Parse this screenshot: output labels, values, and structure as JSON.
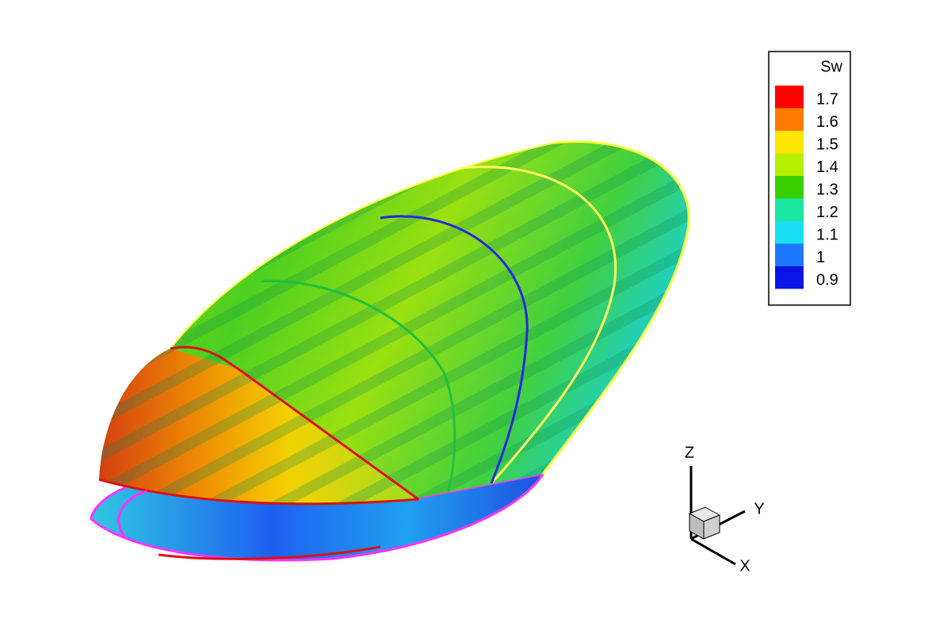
{
  "legend": {
    "title": "Sw",
    "levels": [
      {
        "value": 1.7,
        "color": "#ff0000"
      },
      {
        "value": 1.6,
        "color": "#ff7a00"
      },
      {
        "value": 1.5,
        "color": "#ffe600"
      },
      {
        "value": 1.4,
        "color": "#b4f000"
      },
      {
        "value": 1.3,
        "color": "#3ad000"
      },
      {
        "value": 1.2,
        "color": "#19e6a0"
      },
      {
        "value": 1.1,
        "color": "#19e0f0"
      },
      {
        "value": 1,
        "color": "#1e78ff"
      },
      {
        "value": 0.9,
        "color": "#0a14e6"
      }
    ]
  },
  "axes": {
    "z": "Z",
    "y": "Y",
    "x": "X"
  }
}
